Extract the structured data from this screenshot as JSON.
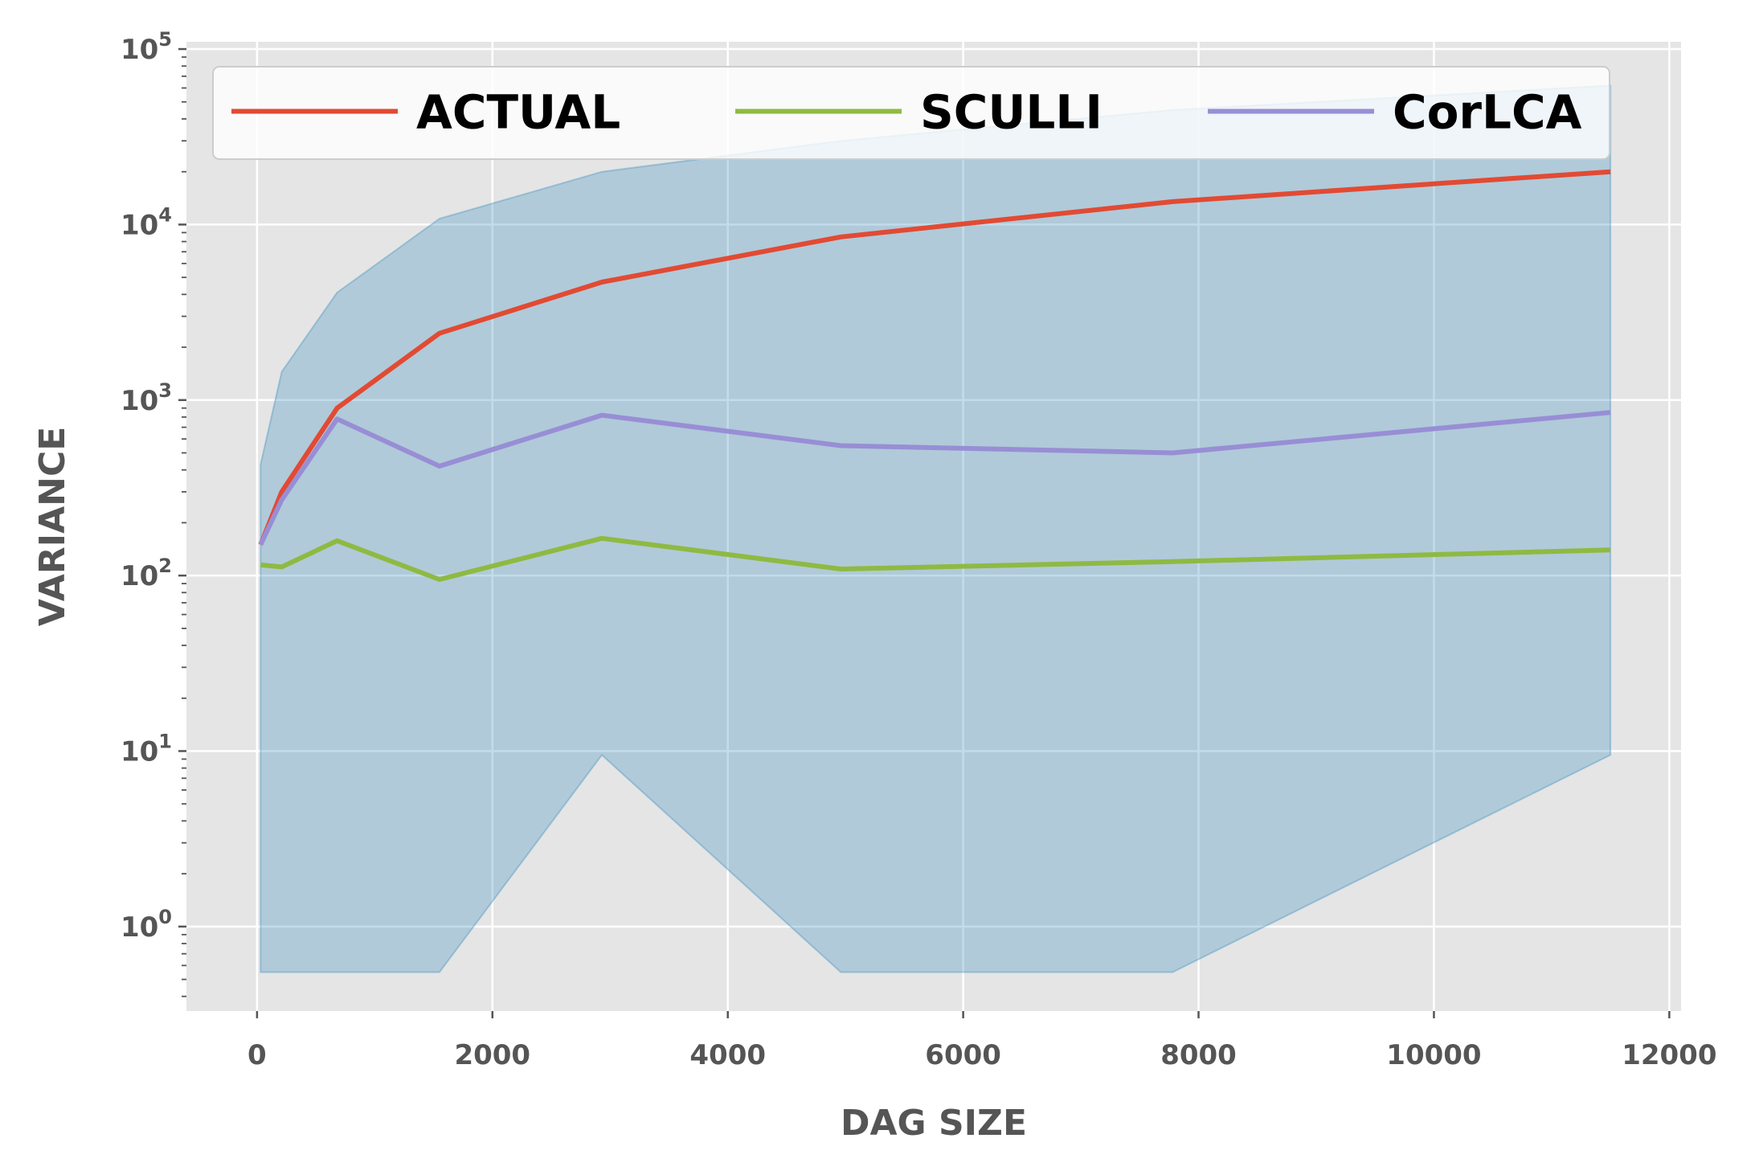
{
  "chart_data": {
    "type": "line",
    "title": "",
    "xlabel": "DAG SIZE",
    "ylabel": "VARIANCE",
    "xlim": [
      -600,
      12100
    ],
    "ylim": [
      0.33,
      110000
    ],
    "yscale": "log",
    "grid": true,
    "legend_position": "top",
    "x_ticks": [
      "0",
      "2000",
      "4000",
      "6000",
      "8000",
      "10000",
      "12000"
    ],
    "y_ticks": [
      {
        "base": "10",
        "exp": "0"
      },
      {
        "base": "10",
        "exp": "1"
      },
      {
        "base": "10",
        "exp": "2"
      },
      {
        "base": "10",
        "exp": "3"
      },
      {
        "base": "10",
        "exp": "4"
      },
      {
        "base": "10",
        "exp": "5"
      }
    ],
    "series": [
      {
        "name": "ACTUAL",
        "color": "#E24A33",
        "x": [
          30,
          210,
          680,
          1550,
          2930,
          4960,
          7780,
          11500
        ],
        "y": [
          150,
          300,
          900,
          2400,
          4700,
          8500,
          13500,
          20000
        ]
      },
      {
        "name": "SCULLI",
        "color": "#8EBA42",
        "x": [
          30,
          210,
          680,
          1550,
          2930,
          4960,
          7780,
          11500
        ],
        "y": [
          115,
          112,
          158,
          95,
          163,
          109,
          120,
          140
        ]
      },
      {
        "name": "CorLCA",
        "color": "#988ED5",
        "x": [
          30,
          210,
          680,
          1550,
          2930,
          4960,
          7780,
          11500
        ],
        "y": [
          150,
          270,
          780,
          420,
          820,
          550,
          500,
          850
        ]
      }
    ],
    "band": {
      "color": "#348ABD",
      "opacity": 0.3,
      "x": [
        30,
        210,
        680,
        1550,
        2930,
        4960,
        7780,
        11500
      ],
      "upper": [
        430,
        1450,
        4100,
        10800,
        20000,
        30000,
        45000,
        62000
      ],
      "lower": [
        0.55,
        0.55,
        0.55,
        0.55,
        9.5,
        0.55,
        0.55,
        9.5
      ]
    },
    "colors": {
      "plot_background": "#E5E5E5",
      "grid": "#FFFFFF",
      "tick_text": "#555555"
    }
  }
}
